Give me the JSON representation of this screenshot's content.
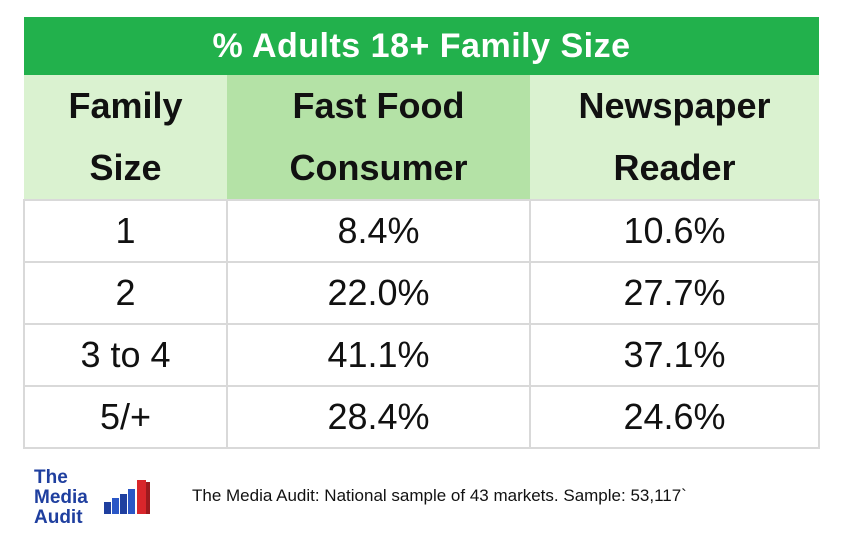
{
  "chart_data": {
    "type": "table",
    "title": "% Adults 18+ Family Size",
    "columns": [
      "Family Size",
      "Fast Food Consumer",
      "Newspaper Reader"
    ],
    "column_lines": [
      [
        "Family",
        "Size"
      ],
      [
        "Fast Food",
        "Consumer"
      ],
      [
        "Newspaper",
        "Reader"
      ]
    ],
    "rows": [
      [
        "1",
        "8.4%",
        "10.6%"
      ],
      [
        "2",
        "22.0%",
        "27.7%"
      ],
      [
        "3 to 4",
        "41.1%",
        "37.1%"
      ],
      [
        "5/+",
        "28.4%",
        "24.6%"
      ]
    ],
    "colors": {
      "title_bg": "#22b14c",
      "header_bg": "#daf2d0",
      "header_highlight_bg": "#b4e2a6",
      "logo_blue": "#1f3f9f",
      "logo_red": "#d9262b"
    }
  },
  "footer": {
    "logo": {
      "line1": "The",
      "line2": "Media",
      "line3": "Audit"
    },
    "source": "The Media Audit: National sample of 43 markets. Sample: 53,117`"
  }
}
